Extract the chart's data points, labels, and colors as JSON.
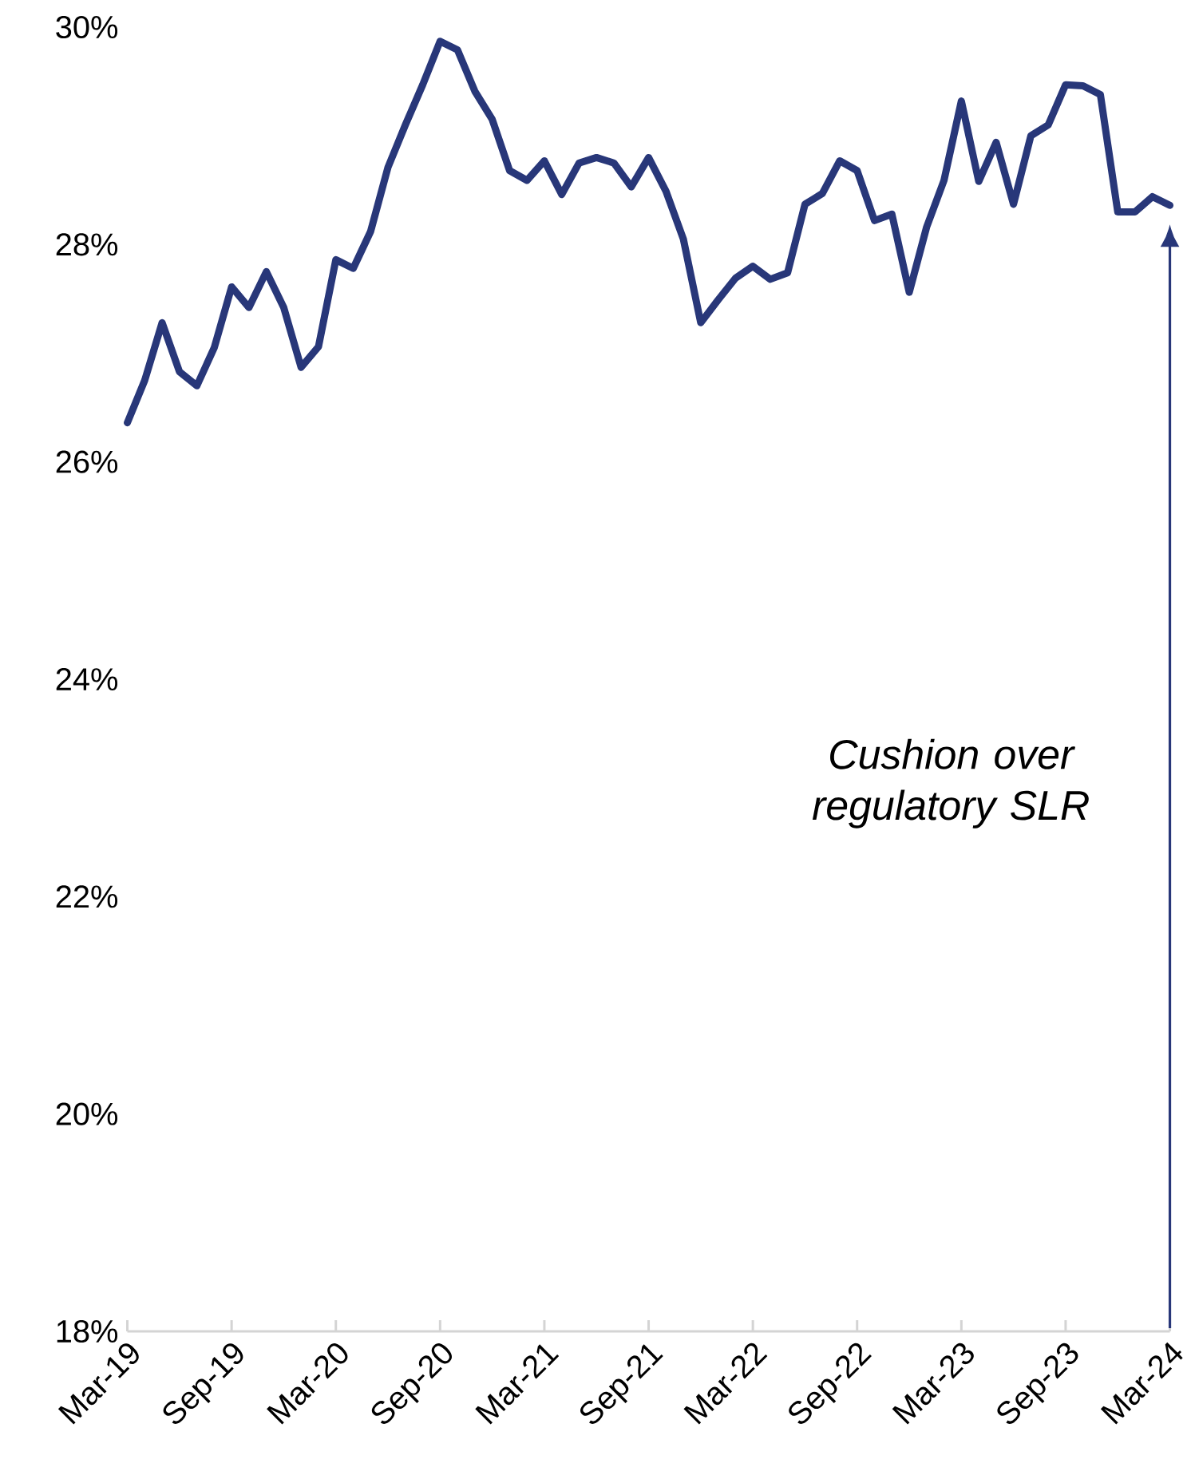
{
  "chart_data": {
    "type": "line",
    "x": [
      "2019-03",
      "2019-04",
      "2019-05",
      "2019-06",
      "2019-07",
      "2019-08",
      "2019-09",
      "2019-10",
      "2019-11",
      "2019-12",
      "2020-01",
      "2020-02",
      "2020-03",
      "2020-04",
      "2020-05",
      "2020-06",
      "2020-07",
      "2020-08",
      "2020-09",
      "2020-10",
      "2020-11",
      "2020-12",
      "2021-01",
      "2021-02",
      "2021-03",
      "2021-04",
      "2021-05",
      "2021-06",
      "2021-07",
      "2021-08",
      "2021-09",
      "2021-10",
      "2021-11",
      "2021-12",
      "2022-01",
      "2022-02",
      "2022-03",
      "2022-04",
      "2022-05",
      "2022-06",
      "2022-07",
      "2022-08",
      "2022-09",
      "2022-10",
      "2022-11",
      "2022-12",
      "2023-01",
      "2023-02",
      "2023-03",
      "2023-04",
      "2023-05",
      "2023-06",
      "2023-07",
      "2023-08",
      "2023-09",
      "2023-10",
      "2023-11",
      "2023-12",
      "2024-01",
      "2024-02",
      "2024-03"
    ],
    "series": [
      {
        "color": "#283779",
        "values": [
          26.36,
          26.75,
          27.28,
          26.83,
          26.7,
          27.05,
          27.61,
          27.42,
          27.75,
          27.42,
          26.87,
          27.06,
          27.86,
          27.78,
          28.12,
          28.71,
          29.1,
          29.47,
          29.87,
          29.79,
          29.41,
          29.15,
          28.68,
          28.59,
          28.77,
          28.46,
          28.75,
          28.8,
          28.75,
          28.53,
          28.8,
          28.49,
          28.05,
          27.28,
          27.49,
          27.69,
          27.8,
          27.68,
          27.74,
          28.37,
          28.47,
          28.77,
          28.68,
          28.22,
          28.28,
          27.56,
          28.16,
          28.59,
          29.32,
          28.58,
          28.94,
          28.37,
          29.0,
          29.1,
          29.47,
          29.46,
          29.38,
          28.3,
          28.3,
          28.44,
          28.36
        ]
      }
    ],
    "xlim": [
      "2019-03",
      "2024-03"
    ],
    "xticks": [
      {
        "value": "2019-03",
        "label": "Mar-19"
      },
      {
        "value": "2019-09",
        "label": "Sep-19"
      },
      {
        "value": "2020-03",
        "label": "Mar-20"
      },
      {
        "value": "2020-09",
        "label": "Sep-20"
      },
      {
        "value": "2021-03",
        "label": "Mar-21"
      },
      {
        "value": "2021-09",
        "label": "Sep-21"
      },
      {
        "value": "2022-03",
        "label": "Mar-22"
      },
      {
        "value": "2022-09",
        "label": "Sep-22"
      },
      {
        "value": "2023-03",
        "label": "Mar-23"
      },
      {
        "value": "2023-09",
        "label": "Sep-23"
      },
      {
        "value": "2024-03",
        "label": "Mar-24"
      }
    ],
    "ylim": [
      18,
      30
    ],
    "yticks": [
      {
        "value": 18,
        "label": "18%"
      },
      {
        "value": 20,
        "label": "20%"
      },
      {
        "value": 22,
        "label": "22%"
      },
      {
        "value": 24,
        "label": "24%"
      },
      {
        "value": 26,
        "label": "26%"
      },
      {
        "value": 28,
        "label": "28%"
      },
      {
        "value": 30,
        "label": "30%"
      }
    ],
    "annotations": [
      "Cushion over regulatory SLR"
    ]
  }
}
